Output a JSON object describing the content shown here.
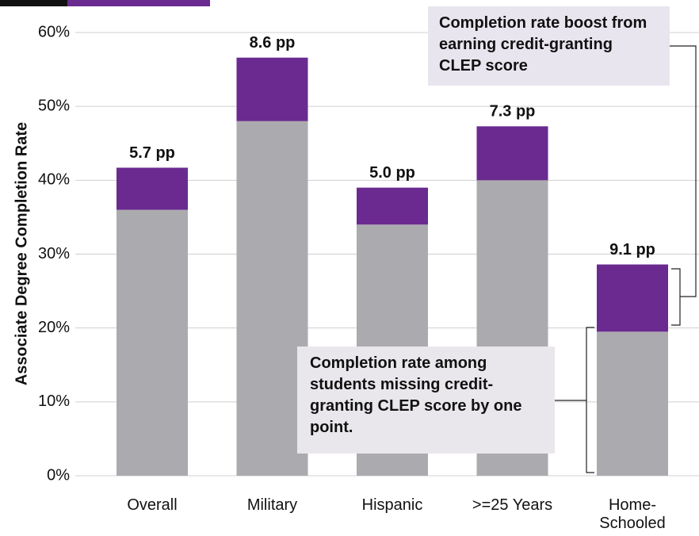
{
  "chart_data": {
    "type": "stacked_bar",
    "y_label": "Associate Degree Completion Rate",
    "categories": [
      "Overall",
      "Military",
      "Hispanic",
      ">=25 Years",
      "Home-Schooled"
    ],
    "series": [
      {
        "name": "Completion rate among students missing credit-granting CLEP score by one point.",
        "color": "#abaaae",
        "values": [
          36.0,
          48.0,
          34.0,
          40.0,
          19.5
        ]
      },
      {
        "name": "Completion rate boost from earning credit-granting CLEP score",
        "color": "#6a2a90",
        "values": [
          5.7,
          8.6,
          5.0,
          7.3,
          9.1
        ],
        "value_labels": [
          "5.7 pp",
          "8.6 pp",
          "5.0 pp",
          "7.3 pp",
          "9.1 pp"
        ]
      }
    ],
    "ylim": [
      0,
      60
    ],
    "yticks": [
      {
        "value": 0,
        "label": "0%"
      },
      {
        "value": 10,
        "label": "10%"
      },
      {
        "value": 20,
        "label": "20%"
      },
      {
        "value": 30,
        "label": "30%"
      },
      {
        "value": 40,
        "label": "40%"
      },
      {
        "value": 50,
        "label": "50%"
      },
      {
        "value": 60,
        "label": "60%"
      }
    ],
    "grid": true
  }
}
